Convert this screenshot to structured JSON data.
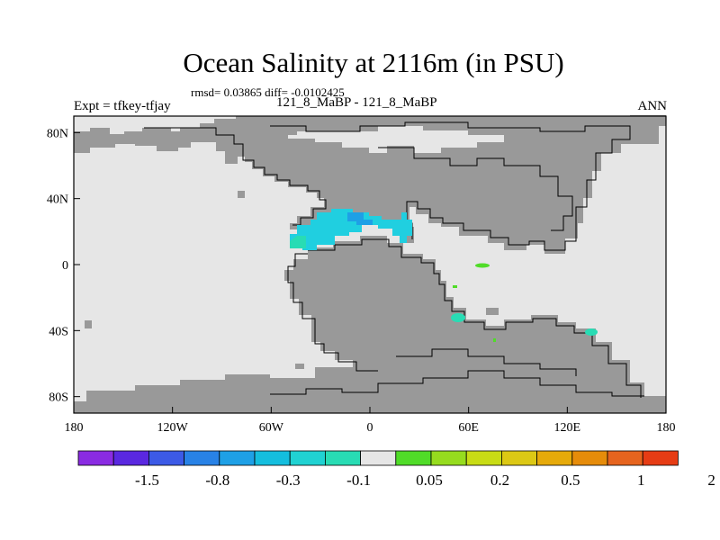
{
  "header": {
    "title": "Ocean Salinity at 2116m (in PSU)",
    "stats": "rmsd= 0.03865  diff= -0.0102425",
    "experiment": "Expt = tfkey-tfjay",
    "comparison": "121_8_MaBP - 121_8_MaBP",
    "season": "ANN"
  },
  "map": {
    "lon_range": [
      -180,
      180
    ],
    "lat_range": [
      -90,
      90
    ],
    "ocean_color": "#e6e6e6",
    "land_color": "#999999",
    "coast_color": "#000000",
    "x_ticks": [
      {
        "value": -180,
        "label": "180"
      },
      {
        "value": -120,
        "label": "120W"
      },
      {
        "value": -60,
        "label": "60W"
      },
      {
        "value": 0,
        "label": "0"
      },
      {
        "value": 60,
        "label": "60E"
      },
      {
        "value": 120,
        "label": "120E"
      },
      {
        "value": 180,
        "label": "180"
      }
    ],
    "y_ticks": [
      {
        "value": 80,
        "label": "80N"
      },
      {
        "value": 40,
        "label": "40N"
      },
      {
        "value": 0,
        "label": "0"
      },
      {
        "value": -40,
        "label": "40S"
      },
      {
        "value": -80,
        "label": "80S"
      }
    ]
  },
  "colorbar": {
    "colors": [
      "#8a2be2",
      "#5a28e0",
      "#3c5ae6",
      "#2882e6",
      "#1ea0e6",
      "#14bede",
      "#20d2d2",
      "#28dcb4",
      "#e6e6e6",
      "#50dc28",
      "#96dc1e",
      "#c8dc14",
      "#dcc814",
      "#e6aa0a",
      "#e68c0a",
      "#e6641e",
      "#e63c14"
    ],
    "labels": [
      {
        "after_box": 2,
        "text": "-1.5"
      },
      {
        "after_box": 4,
        "text": "-0.8"
      },
      {
        "after_box": 6,
        "text": "-0.3"
      },
      {
        "after_box": 8,
        "text": "-0.1"
      },
      {
        "after_box": 10,
        "text": "0.05"
      },
      {
        "after_box": 12,
        "text": "0.2"
      },
      {
        "after_box": 14,
        "text": "0.5"
      },
      {
        "after_box": 16,
        "text": "1"
      },
      {
        "after_box": 18,
        "text": "2"
      }
    ]
  }
}
